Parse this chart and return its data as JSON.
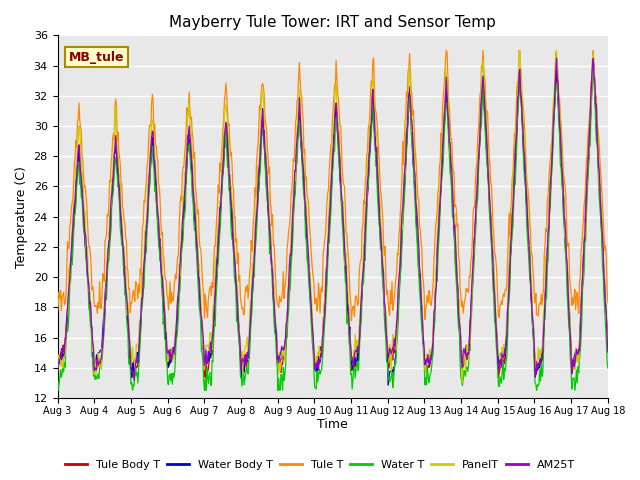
{
  "title": "Mayberry Tule Tower: IRT and Sensor Temp",
  "xlabel": "Time",
  "ylabel": "Temperature (C)",
  "ylim": [
    12,
    36
  ],
  "yticks": [
    12,
    14,
    16,
    18,
    20,
    22,
    24,
    26,
    28,
    30,
    32,
    34,
    36
  ],
  "num_days": 15,
  "start_day": 3,
  "legend_labels": [
    "Tule Body T",
    "Water Body T",
    "Tule T",
    "Water T",
    "PanelT",
    "AM25T"
  ],
  "line_colors": [
    "#cc0000",
    "#0000cc",
    "#ff8800",
    "#00cc00",
    "#cccc00",
    "#9900cc"
  ],
  "watermark_text": "MB_tule",
  "bg_color": "#e8e8e8",
  "grid_color": "#ffffff"
}
